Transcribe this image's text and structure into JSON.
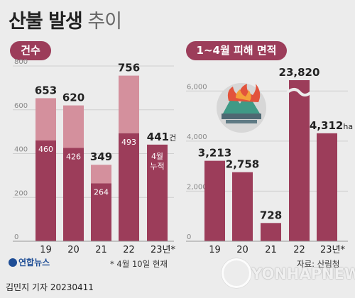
{
  "title": {
    "bold": "산불 발생",
    "light": "추이"
  },
  "colors": {
    "dark": "#9c3d5a",
    "light": "#d4909d",
    "grid": "#cfcfcf",
    "bg": "#ececec"
  },
  "chart_data": [
    {
      "type": "bar",
      "title": "건수",
      "categories": [
        "19",
        "20",
        "21",
        "22",
        "23년*"
      ],
      "series": [
        {
          "values": [
            653,
            620,
            349,
            756,
            441
          ]
        },
        {
          "values": [
            460,
            426,
            264,
            493,
            null
          ]
        }
      ],
      "total_labels": [
        "653",
        "620",
        "349",
        "756",
        "441"
      ],
      "inner_labels": [
        "460",
        "426",
        "264",
        "493",
        ""
      ],
      "last_unit": "건",
      "last_inner_note": [
        "4월",
        "누적"
      ],
      "ylim": [
        0,
        800
      ],
      "yticks": [
        "0",
        "200",
        "400",
        "600",
        "800"
      ],
      "grid": true
    },
    {
      "type": "bar",
      "title": "1~4월 피해 면적",
      "categories": [
        "19",
        "20",
        "21",
        "22",
        "23년*"
      ],
      "values": [
        3213,
        2758,
        728,
        23820,
        4312
      ],
      "value_labels": [
        "3,213",
        "2,758",
        "728",
        "23,820",
        "4,312"
      ],
      "last_unit": "ha",
      "broken_axis_category": "22",
      "ylim": [
        0,
        7000
      ],
      "yticks": [
        "0",
        "2,000",
        "4,000",
        "6,000"
      ],
      "grid": true
    }
  ],
  "note": "* 4월 10일 현재",
  "source": "자료: 산림청",
  "footer": "김민지 기자  20230411",
  "logo": "연합뉴스",
  "watermark": "YONHAPNEWS"
}
